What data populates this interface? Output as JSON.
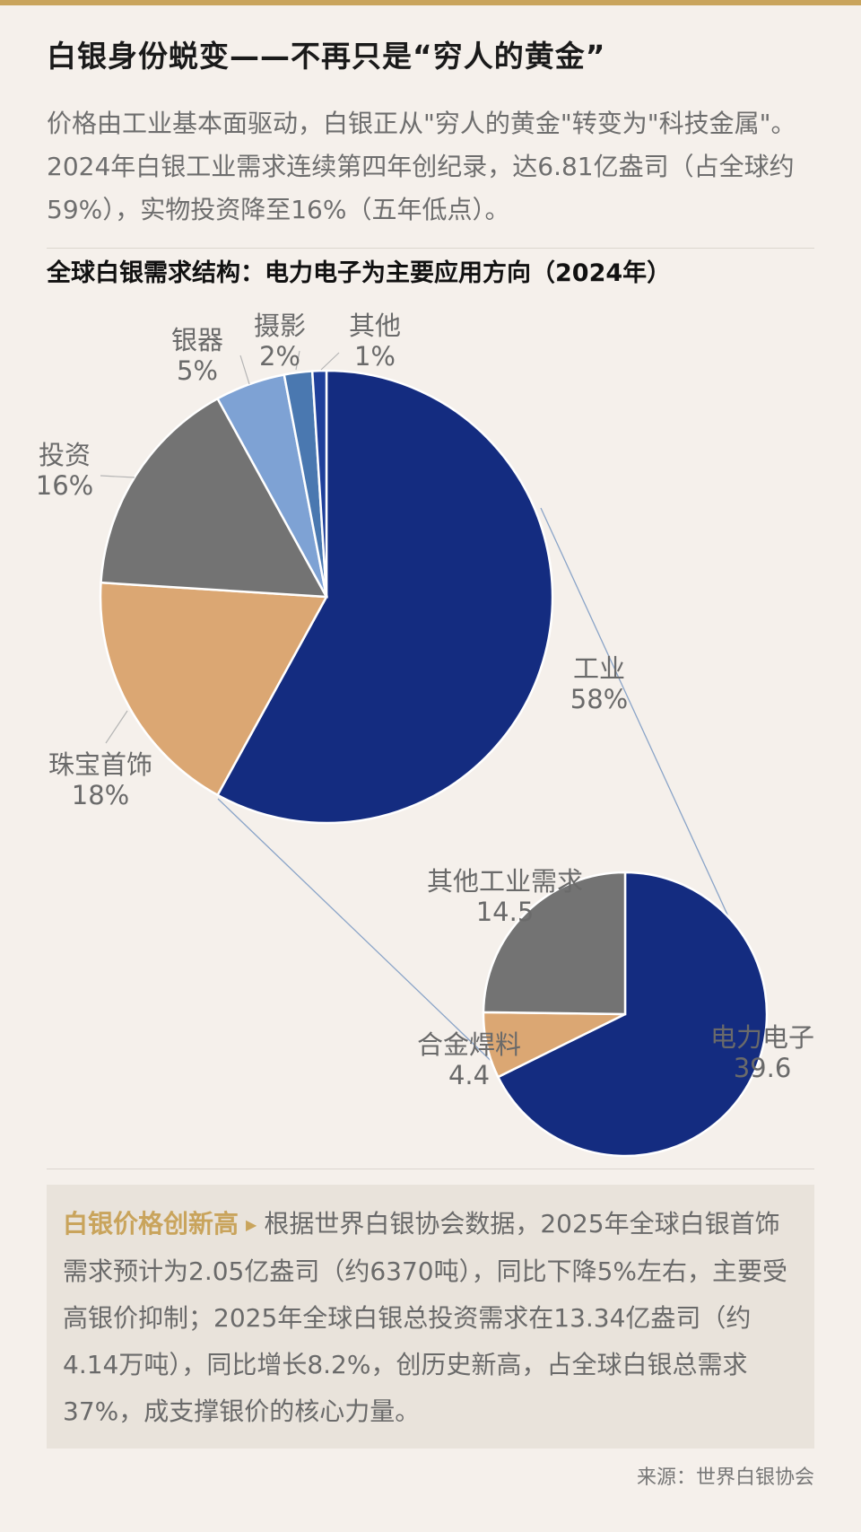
{
  "header": {
    "title": "白银身份蜕变——不再只是“穷人的黄金”",
    "intro": "价格由工业基本面驱动，白银正从\"穷人的黄金\"转变为\"科技金属\"。2024年白银工业需求连续第四年创纪录，达6.81亿盎司（占全球约59%），实物投资降至16%（五年低点）。"
  },
  "chart_data": [
    {
      "type": "pie",
      "title": "全球白银需求结构：电力电子为主要应用方向（2024年）",
      "slices": [
        {
          "label": "工业",
          "value": 58,
          "display": "58%",
          "color": "#142c80"
        },
        {
          "label": "珠宝首饰",
          "value": 18,
          "display": "18%",
          "color": "#dba773"
        },
        {
          "label": "投资",
          "value": 16,
          "display": "16%",
          "color": "#737373"
        },
        {
          "label": "银器",
          "value": 5,
          "display": "5%",
          "color": "#7ea2d4"
        },
        {
          "label": "摄影",
          "value": 2,
          "display": "2%",
          "color": "#4a78b0"
        },
        {
          "label": "其他",
          "value": 1,
          "display": "1%",
          "color": "#1f3f9a"
        }
      ]
    },
    {
      "type": "pie",
      "title": "",
      "slices": [
        {
          "label": "电力电子",
          "value": 39.6,
          "display": "39.6",
          "color": "#142c80"
        },
        {
          "label": "合金焊料",
          "value": 4.4,
          "display": "4.4",
          "color": "#dba773"
        },
        {
          "label": "其他工业需求",
          "value": 14.5,
          "display": "14.5",
          "color": "#737373"
        }
      ]
    }
  ],
  "note": {
    "heading": "白银价格创新高",
    "arrow": "▶",
    "body": "根据世界白银协会数据，2025年全球白银首饰需求预计为2.05亿盎司（约6370吨），同比下降5%左右，主要受高银价抑制；2025年全球白银总投资需求在13.34亿盎司（约4.14万吨），同比增长8.2%，创历史新高，占全球白银总需求37%，成支撑银价的核心力量。"
  },
  "footer": {
    "source": "来源：世界白银协会"
  }
}
